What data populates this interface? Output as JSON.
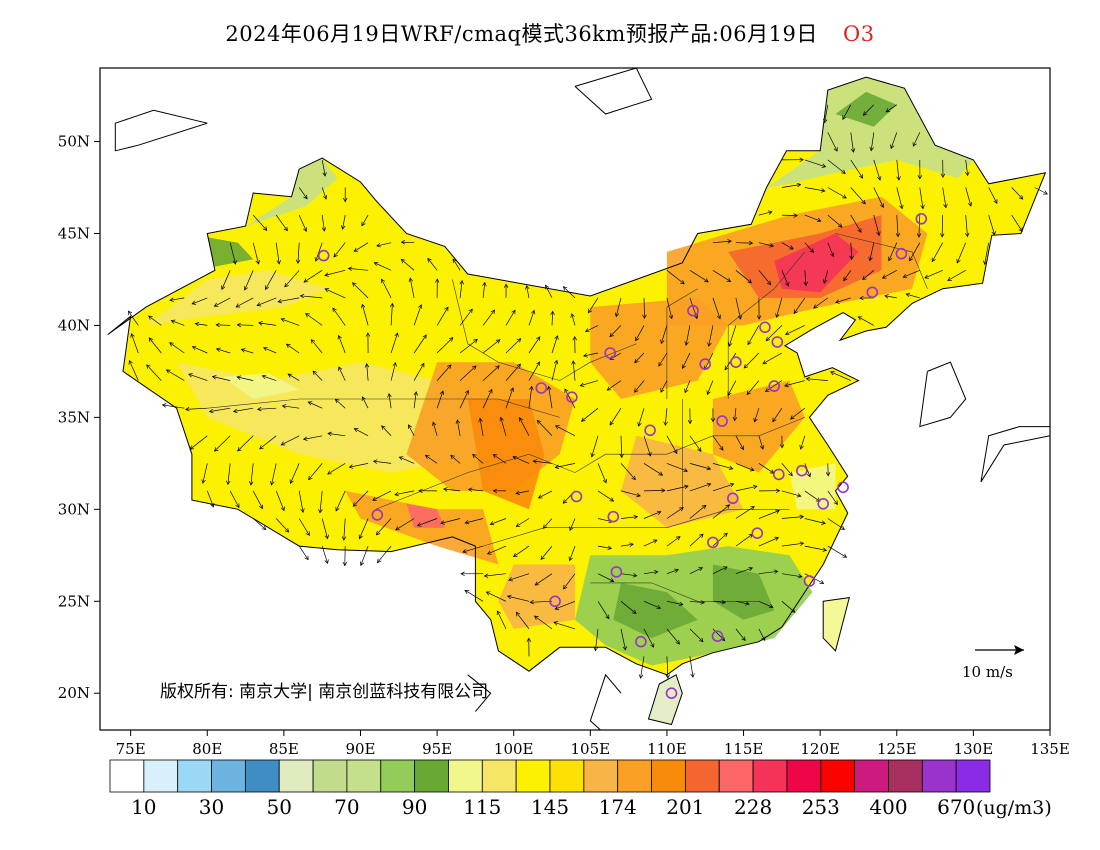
{
  "title": {
    "main": "2024年06月19日WRF/cmaq模式36km预报产品:06月19日",
    "species": "O3"
  },
  "map": {
    "lat_ticks": [
      "50N",
      "45N",
      "40N",
      "35N",
      "30N",
      "25N",
      "20N"
    ],
    "lon_ticks": [
      "75E",
      "80E",
      "85E",
      "90E",
      "95E",
      "100E",
      "105E",
      "110E",
      "115E",
      "120E",
      "125E",
      "130E",
      "135E"
    ],
    "lon_range": [
      73,
      135
    ],
    "lat_range": [
      18,
      54
    ],
    "copyright": "版权所有: 南京大学| 南京创蓝科技有限公司",
    "wind_reference": "10 m/s"
  },
  "legend": {
    "colors": [
      "#ffffff",
      "#d7f0fb",
      "#9bd8f5",
      "#6cb3e0",
      "#3f8dc4",
      "#e0ecc0",
      "#c2dc8e",
      "#c5e08a",
      "#93cc58",
      "#6aa835",
      "#f2f78c",
      "#f5e665",
      "#fdf102",
      "#fde104",
      "#f7b447",
      "#faa025",
      "#f98b0a",
      "#f46530",
      "#fd6767",
      "#f53358",
      "#ef0648",
      "#fd0000",
      "#cc1a7e",
      "#a83060",
      "#9a32cc",
      "#8b2be6"
    ],
    "tick_labels": [
      "10",
      "30",
      "50",
      "70",
      "90",
      "115",
      "145",
      "174",
      "201",
      "228",
      "253",
      "400",
      "670"
    ],
    "unit": "(ug/m3)"
  }
}
